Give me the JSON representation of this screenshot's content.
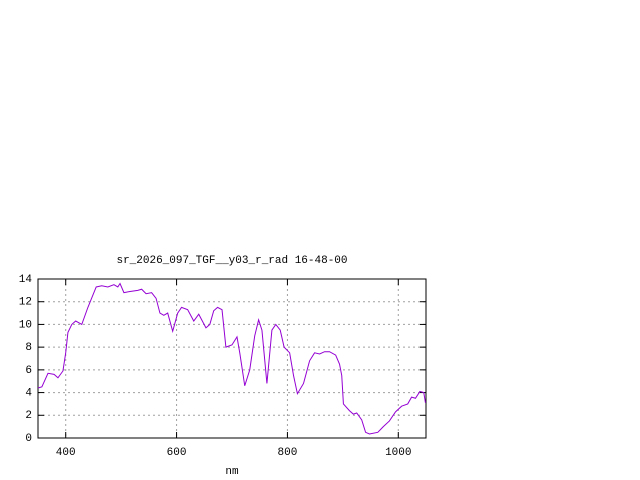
{
  "chart_data": {
    "type": "line",
    "title": "sr_2026_097_TGF__y03_r_rad 16-48-00",
    "xlabel": "nm",
    "color": "#9400d3",
    "grid": true,
    "x": [
      350,
      357,
      368,
      379,
      386,
      395,
      400,
      404,
      411,
      418,
      429,
      440,
      455,
      465,
      476,
      487,
      494,
      498,
      505,
      516,
      530,
      537,
      545,
      555,
      563,
      570,
      577,
      584,
      593,
      602,
      609,
      620,
      631,
      640,
      653,
      660,
      667,
      674,
      682,
      689,
      700,
      709,
      714,
      723,
      732,
      741,
      748,
      754,
      763,
      772,
      779,
      787,
      794,
      804,
      811,
      818,
      829,
      840,
      849,
      858,
      867,
      876,
      887,
      894,
      898,
      901,
      912,
      919,
      925,
      934,
      941,
      948,
      963,
      973,
      984,
      995,
      1006,
      1017,
      1024,
      1031,
      1039,
      1046,
      1049
    ],
    "values": [
      4.4,
      4.5,
      5.7,
      5.6,
      5.3,
      5.9,
      7.5,
      9.3,
      10.0,
      10.3,
      10.0,
      11.5,
      13.3,
      13.4,
      13.3,
      13.5,
      13.3,
      13.6,
      12.8,
      12.9,
      13.0,
      13.1,
      12.7,
      12.8,
      12.3,
      11.0,
      10.8,
      11.0,
      9.4,
      11.0,
      11.5,
      11.3,
      10.3,
      10.9,
      9.7,
      10.0,
      11.2,
      11.5,
      11.3,
      8.0,
      8.2,
      8.9,
      7.5,
      4.6,
      6.0,
      9.0,
      10.4,
      9.5,
      4.8,
      9.5,
      10.0,
      9.5,
      8.0,
      7.5,
      5.5,
      3.9,
      4.8,
      6.8,
      7.5,
      7.4,
      7.6,
      7.6,
      7.3,
      6.5,
      5.5,
      3.0,
      2.4,
      2.1,
      2.2,
      1.6,
      0.5,
      0.35,
      0.5,
      1.0,
      1.5,
      2.3,
      2.8,
      3.0,
      3.6,
      3.5,
      4.1,
      4.0,
      3.1
    ],
    "xlim": [
      350,
      1050
    ],
    "xticks": [
      400,
      600,
      800,
      1000
    ],
    "ylim": [
      0,
      14
    ],
    "yticks": [
      0,
      2,
      4,
      6,
      8,
      10,
      12,
      14
    ]
  }
}
